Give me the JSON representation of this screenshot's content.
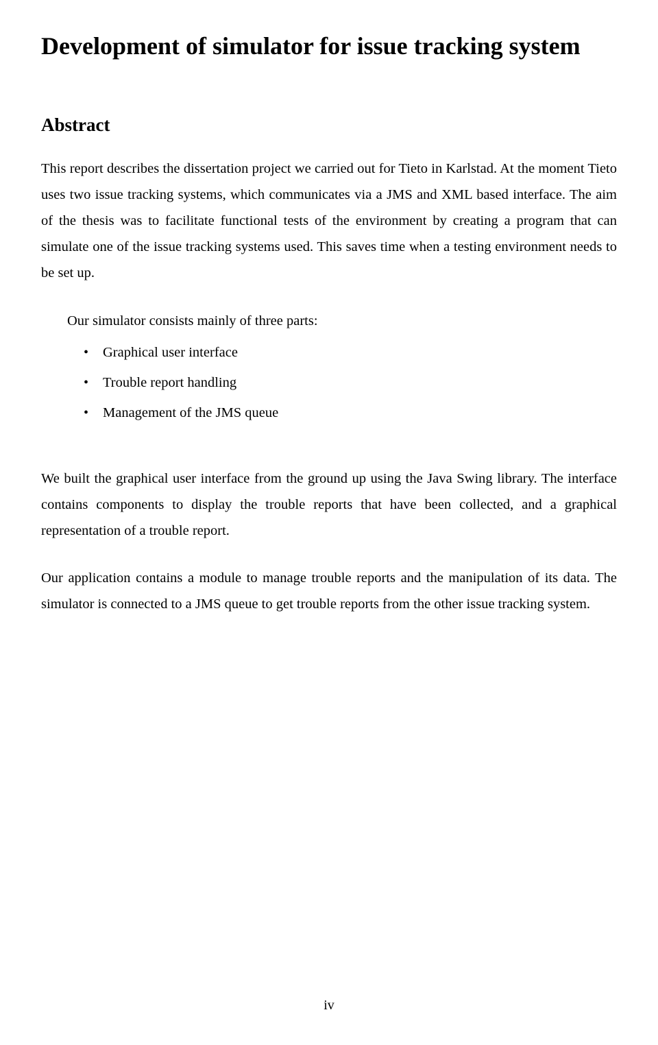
{
  "document": {
    "title": "Development of simulator for issue tracking system",
    "section_heading": "Abstract",
    "paragraph1": "This report describes the dissertation project we carried out for Tieto in Karlstad. At the moment Tieto uses two issue tracking systems, which communicates via a JMS and XML based interface. The aim of the thesis was to facilitate functional tests of the environment by creating a program that can simulate one of the issue tracking systems used. This saves time when a testing environment needs to be set up.",
    "parts_intro": "Our simulator consists mainly of three parts:",
    "bullets": [
      "Graphical user interface",
      "Trouble report handling",
      "Management of the JMS queue"
    ],
    "paragraph2": "We built the graphical user interface from the ground up using the Java Swing library. The interface contains components to display the trouble reports that have been collected, and a graphical representation of a trouble report.",
    "paragraph3": "Our application contains a module to manage trouble reports and the manipulation of its data. The simulator is connected to a JMS queue to get trouble reports from the other issue tracking system.",
    "page_number": "iv"
  },
  "style": {
    "background_color": "#ffffff",
    "text_color": "#000000",
    "font_family": "Times New Roman",
    "title_fontsize": 36,
    "heading_fontsize": 27,
    "body_fontsize": 20.5,
    "line_height": 1.85
  }
}
